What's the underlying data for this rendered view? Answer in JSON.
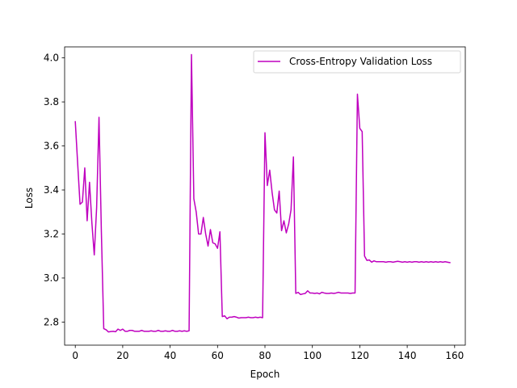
{
  "chart_data": {
    "type": "line",
    "title": "",
    "xlabel": "Epoch",
    "ylabel": "Loss",
    "xlim": [
      -4.5,
      164.5
    ],
    "ylim": [
      2.695,
      4.05
    ],
    "xticks": [
      0,
      20,
      40,
      60,
      80,
      100,
      120,
      140,
      160
    ],
    "yticks": [
      2.8,
      3.0,
      3.2,
      3.4,
      3.6,
      3.8,
      4.0
    ],
    "grid": false,
    "legend_position": "top-right",
    "series": [
      {
        "name": "Cross-Entropy Validation Loss",
        "color": "#bf00bf",
        "x": [
          0,
          1,
          2,
          3,
          4,
          5,
          6,
          7,
          8,
          9,
          10,
          11,
          12,
          13,
          14,
          15,
          16,
          17,
          18,
          19,
          20,
          21,
          22,
          23,
          24,
          25,
          26,
          27,
          28,
          29,
          30,
          31,
          32,
          33,
          34,
          35,
          36,
          37,
          38,
          39,
          40,
          41,
          42,
          43,
          44,
          45,
          46,
          47,
          48,
          49,
          50,
          51,
          52,
          53,
          54,
          55,
          56,
          57,
          58,
          59,
          60,
          61,
          62,
          63,
          64,
          65,
          66,
          67,
          68,
          69,
          70,
          71,
          72,
          73,
          74,
          75,
          76,
          77,
          78,
          79,
          80,
          81,
          82,
          83,
          84,
          85,
          86,
          87,
          88,
          89,
          90,
          91,
          92,
          93,
          94,
          95,
          96,
          97,
          98,
          99,
          100,
          101,
          102,
          103,
          104,
          105,
          106,
          107,
          108,
          109,
          110,
          111,
          112,
          113,
          114,
          115,
          116,
          117,
          118,
          119,
          120,
          121,
          122,
          123,
          124,
          125,
          126,
          127,
          128,
          129,
          130,
          131,
          132,
          133,
          134,
          135,
          136,
          137,
          138,
          139,
          140,
          141,
          142,
          143,
          144,
          145,
          146,
          147,
          148,
          149,
          150,
          151,
          152,
          153,
          154,
          155,
          156,
          157,
          158
        ],
        "values": [
          3.71,
          3.52,
          3.335,
          3.345,
          3.5,
          3.26,
          3.435,
          3.25,
          3.105,
          3.32,
          3.73,
          3.21,
          2.77,
          2.765,
          2.755,
          2.757,
          2.758,
          2.756,
          2.768,
          2.762,
          2.768,
          2.758,
          2.758,
          2.762,
          2.762,
          2.758,
          2.758,
          2.758,
          2.762,
          2.758,
          2.758,
          2.758,
          2.76,
          2.758,
          2.758,
          2.762,
          2.758,
          2.758,
          2.76,
          2.758,
          2.758,
          2.762,
          2.758,
          2.758,
          2.76,
          2.758,
          2.76,
          2.758,
          2.76,
          4.015,
          3.36,
          3.3,
          3.2,
          3.2,
          3.275,
          3.2,
          3.145,
          3.22,
          3.16,
          3.155,
          3.135,
          3.21,
          2.825,
          2.828,
          2.815,
          2.822,
          2.822,
          2.825,
          2.822,
          2.818,
          2.82,
          2.82,
          2.82,
          2.822,
          2.82,
          2.82,
          2.822,
          2.82,
          2.822,
          2.82,
          3.66,
          3.42,
          3.49,
          3.39,
          3.31,
          3.295,
          3.395,
          3.215,
          3.26,
          3.205,
          3.245,
          3.31,
          3.55,
          2.93,
          2.935,
          2.925,
          2.928,
          2.93,
          2.942,
          2.932,
          2.932,
          2.93,
          2.932,
          2.928,
          2.935,
          2.932,
          2.93,
          2.93,
          2.932,
          2.93,
          2.932,
          2.935,
          2.932,
          2.932,
          2.932,
          2.932,
          2.93,
          2.932,
          2.932,
          3.835,
          3.68,
          3.665,
          3.1,
          3.08,
          3.082,
          3.072,
          3.078,
          3.074,
          3.074,
          3.074,
          3.074,
          3.072,
          3.074,
          3.074,
          3.072,
          3.074,
          3.076,
          3.074,
          3.072,
          3.074,
          3.072,
          3.074,
          3.072,
          3.074,
          3.074,
          3.072,
          3.074,
          3.072,
          3.074,
          3.072,
          3.074,
          3.072,
          3.074,
          3.072,
          3.074,
          3.072,
          3.074,
          3.072,
          3.07
        ]
      }
    ]
  }
}
